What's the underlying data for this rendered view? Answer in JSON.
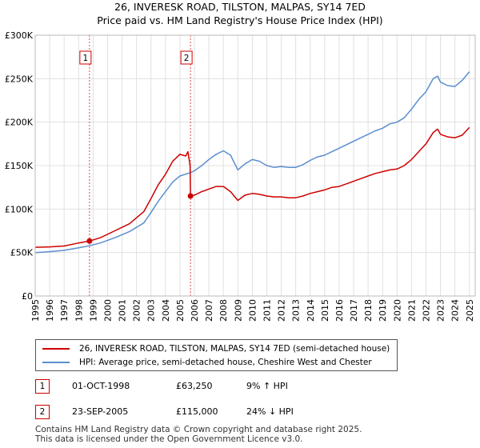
{
  "title": {
    "line1": "26, INVERESK ROAD, TILSTON, MALPAS, SY14 7ED",
    "line2": "Price paid vs. HM Land Registry's House Price Index (HPI)"
  },
  "colors": {
    "property": "#cc0000",
    "hpi": "#5b8ecf",
    "grid": "#e0e0e0",
    "shade": "#e6ecf7",
    "marker_line": "#cc0000"
  },
  "chart_data": {
    "type": "line",
    "title": "Price paid vs. HM Land Registry's House Price Index (HPI)",
    "xlim": [
      1995,
      2025.4
    ],
    "ylim": [
      0,
      300000
    ],
    "x_ticks": [
      1995,
      1996,
      1997,
      1998,
      1999,
      2000,
      2001,
      2002,
      2003,
      2004,
      2005,
      2006,
      2007,
      2008,
      2009,
      2010,
      2011,
      2012,
      2013,
      2014,
      2015,
      2016,
      2017,
      2018,
      2019,
      2020,
      2021,
      2022,
      2023,
      2024,
      2025
    ],
    "x_tick_labels": [
      "1995",
      "1996",
      "1997",
      "1998",
      "1999",
      "2000",
      "2001",
      "2002",
      "2003",
      "2004",
      "2005",
      "2006",
      "2007",
      "2008",
      "2009",
      "2010",
      "2011",
      "2012",
      "2013",
      "2014",
      "2015",
      "2016",
      "2017",
      "2018",
      "2019",
      "2020",
      "2021",
      "2022",
      "2023",
      "2024",
      "2025"
    ],
    "y_ticks": [
      0,
      50000,
      100000,
      150000,
      200000,
      250000,
      300000
    ],
    "y_tick_labels": [
      "£0",
      "£50K",
      "£100K",
      "£150K",
      "£200K",
      "£250K",
      "£300K"
    ],
    "grid": true,
    "series": [
      {
        "name": "26, INVERESK ROAD, TILSTON, MALPAS, SY14 7ED (semi-detached house)",
        "color": "#cc0000",
        "points": [
          [
            1995.0,
            56000
          ],
          [
            1996.0,
            56500
          ],
          [
            1997.0,
            57500
          ],
          [
            1998.0,
            61000
          ],
          [
            1998.75,
            63250
          ],
          [
            1999.5,
            67000
          ],
          [
            2000.5,
            75000
          ],
          [
            2001.5,
            83000
          ],
          [
            2002.5,
            97000
          ],
          [
            2003.0,
            112000
          ],
          [
            2003.5,
            128000
          ],
          [
            2004.0,
            140000
          ],
          [
            2004.5,
            155000
          ],
          [
            2005.0,
            163000
          ],
          [
            2005.4,
            161000
          ],
          [
            2005.55,
            166000
          ],
          [
            2005.7,
            150000
          ],
          [
            2005.73,
            115000
          ],
          [
            2006.0,
            116000
          ],
          [
            2006.5,
            120000
          ],
          [
            2007.0,
            123000
          ],
          [
            2007.5,
            126000
          ],
          [
            2008.0,
            126000
          ],
          [
            2008.5,
            120000
          ],
          [
            2009.0,
            110000
          ],
          [
            2009.5,
            116000
          ],
          [
            2010.0,
            118000
          ],
          [
            2010.5,
            117000
          ],
          [
            2011.0,
            115000
          ],
          [
            2011.5,
            114000
          ],
          [
            2012.0,
            114000
          ],
          [
            2012.5,
            113000
          ],
          [
            2013.0,
            113000
          ],
          [
            2013.5,
            115000
          ],
          [
            2014.0,
            118000
          ],
          [
            2014.5,
            120000
          ],
          [
            2015.0,
            122000
          ],
          [
            2015.5,
            125000
          ],
          [
            2016.0,
            126000
          ],
          [
            2016.5,
            129000
          ],
          [
            2017.0,
            132000
          ],
          [
            2017.5,
            135000
          ],
          [
            2018.0,
            138000
          ],
          [
            2018.5,
            141000
          ],
          [
            2019.0,
            143000
          ],
          [
            2019.5,
            145000
          ],
          [
            2020.0,
            146000
          ],
          [
            2020.5,
            150000
          ],
          [
            2021.0,
            157000
          ],
          [
            2021.5,
            166000
          ],
          [
            2022.0,
            175000
          ],
          [
            2022.5,
            188000
          ],
          [
            2022.8,
            192000
          ],
          [
            2023.0,
            186000
          ],
          [
            2023.5,
            183000
          ],
          [
            2024.0,
            182000
          ],
          [
            2024.5,
            185000
          ],
          [
            2025.0,
            194000
          ]
        ]
      },
      {
        "name": "HPI: Average price, semi-detached house, Cheshire West and Chester",
        "color": "#5b8ecf",
        "points": [
          [
            1995.0,
            50000
          ],
          [
            1996.0,
            51000
          ],
          [
            1997.0,
            52500
          ],
          [
            1998.0,
            55500
          ],
          [
            1998.75,
            57800
          ],
          [
            1999.5,
            61000
          ],
          [
            2000.5,
            67000
          ],
          [
            2001.5,
            74000
          ],
          [
            2002.5,
            84000
          ],
          [
            2003.0,
            96000
          ],
          [
            2003.5,
            109000
          ],
          [
            2004.0,
            120000
          ],
          [
            2004.5,
            131000
          ],
          [
            2005.0,
            138000
          ],
          [
            2005.73,
            142000
          ],
          [
            2006.0,
            144000
          ],
          [
            2006.5,
            150000
          ],
          [
            2007.0,
            157000
          ],
          [
            2007.5,
            163000
          ],
          [
            2008.0,
            167000
          ],
          [
            2008.5,
            162000
          ],
          [
            2009.0,
            145000
          ],
          [
            2009.5,
            152000
          ],
          [
            2010.0,
            157000
          ],
          [
            2010.5,
            155000
          ],
          [
            2011.0,
            150000
          ],
          [
            2011.5,
            148000
          ],
          [
            2012.0,
            149000
          ],
          [
            2012.5,
            148000
          ],
          [
            2013.0,
            148000
          ],
          [
            2013.5,
            151000
          ],
          [
            2014.0,
            156000
          ],
          [
            2014.5,
            160000
          ],
          [
            2015.0,
            162000
          ],
          [
            2015.5,
            166000
          ],
          [
            2016.0,
            170000
          ],
          [
            2016.5,
            174000
          ],
          [
            2017.0,
            178000
          ],
          [
            2017.5,
            182000
          ],
          [
            2018.0,
            186000
          ],
          [
            2018.5,
            190000
          ],
          [
            2019.0,
            193000
          ],
          [
            2019.5,
            198000
          ],
          [
            2020.0,
            200000
          ],
          [
            2020.5,
            205000
          ],
          [
            2021.0,
            215000
          ],
          [
            2021.5,
            226000
          ],
          [
            2022.0,
            235000
          ],
          [
            2022.5,
            250000
          ],
          [
            2022.8,
            253000
          ],
          [
            2023.0,
            246000
          ],
          [
            2023.5,
            242000
          ],
          [
            2024.0,
            241000
          ],
          [
            2024.5,
            248000
          ],
          [
            2025.0,
            258000
          ]
        ]
      }
    ],
    "transactions": [
      {
        "label": "1",
        "x": 1998.75,
        "price": 63250
      },
      {
        "label": "2",
        "x": 2005.73,
        "price": 115000
      }
    ],
    "legend_position": "below"
  },
  "legend": {
    "property_label": "26, INVERESK ROAD, TILSTON, MALPAS, SY14 7ED (semi-detached house)",
    "hpi_label": "HPI: Average price, semi-detached house, Cheshire West and Chester"
  },
  "transactions": [
    {
      "num": "1",
      "date": "01-OCT-1998",
      "price": "£63,250",
      "hpi": "9% ↑ HPI"
    },
    {
      "num": "2",
      "date": "23-SEP-2005",
      "price": "£115,000",
      "hpi": "24% ↓ HPI"
    }
  ],
  "footer": {
    "line1": "Contains HM Land Registry data © Crown copyright and database right 2025.",
    "line2": "This data is licensed under the Open Government Licence v3.0."
  }
}
